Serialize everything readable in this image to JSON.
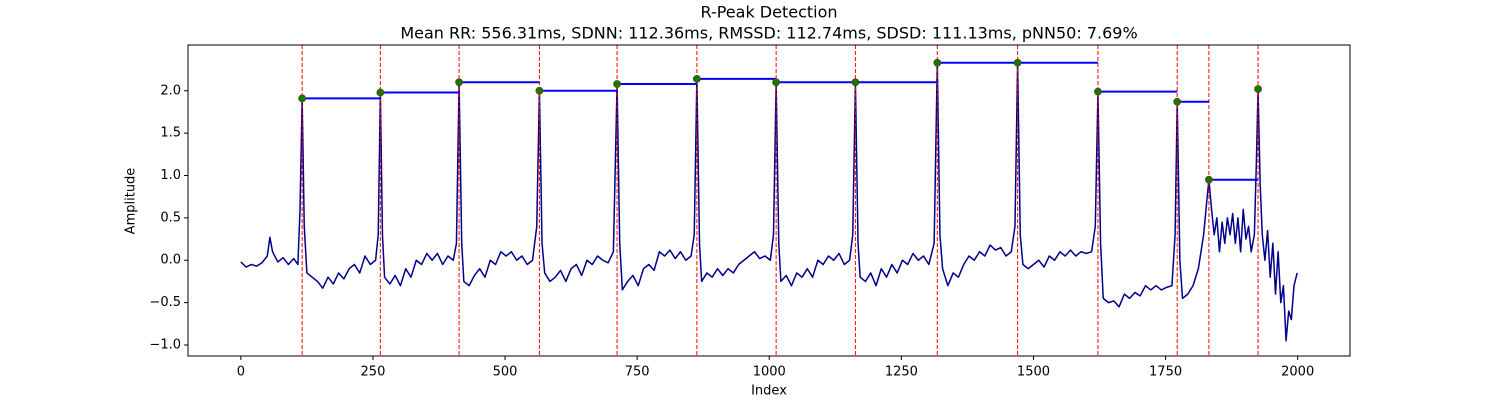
{
  "chart_data": {
    "type": "line",
    "title": "R-Peak Detection",
    "subtitle": "Mean RR: 556.31ms, SDNN: 112.36ms, RMSSD: 112.74ms, SDSD: 111.13ms, pNN50: 7.69%",
    "x_label": "Index",
    "y_label": "Amplitude",
    "xlim": [
      -100,
      2099
    ],
    "ylim": [
      -1.13,
      2.54
    ],
    "xticks": [
      0,
      250,
      500,
      750,
      1000,
      1250,
      1500,
      1750,
      2000
    ],
    "yticks": [
      {
        "value": -1,
        "label": "−1.0"
      },
      {
        "value": -0.5,
        "label": "−0.5"
      },
      {
        "value": 0,
        "label": "0.0"
      },
      0.5,
      {
        "value": 1,
        "label": "1.0"
      },
      1.5,
      {
        "value": 2,
        "label": "2.0"
      }
    ],
    "signal": {
      "color": "#00008b",
      "x": [
        0,
        10,
        20,
        30,
        40,
        50,
        55,
        60,
        70,
        80,
        90,
        100,
        108,
        112,
        116,
        120,
        125,
        135,
        145,
        155,
        165,
        175,
        185,
        195,
        205,
        215,
        225,
        235,
        245,
        255,
        260,
        264,
        268,
        272,
        282,
        292,
        302,
        312,
        322,
        332,
        342,
        352,
        362,
        372,
        382,
        392,
        402,
        408,
        413,
        418,
        422,
        432,
        442,
        452,
        462,
        472,
        482,
        492,
        502,
        512,
        522,
        532,
        542,
        552,
        560,
        565,
        570,
        575,
        585,
        595,
        605,
        615,
        625,
        635,
        645,
        655,
        665,
        675,
        685,
        695,
        705,
        712,
        717,
        722,
        732,
        742,
        752,
        762,
        772,
        782,
        792,
        802,
        812,
        822,
        832,
        842,
        852,
        858,
        863,
        868,
        872,
        882,
        892,
        902,
        912,
        922,
        932,
        942,
        952,
        962,
        972,
        982,
        992,
        1002,
        1008,
        1013,
        1018,
        1022,
        1032,
        1042,
        1052,
        1062,
        1072,
        1082,
        1092,
        1102,
        1112,
        1122,
        1132,
        1142,
        1152,
        1158,
        1163,
        1168,
        1172,
        1182,
        1192,
        1202,
        1212,
        1222,
        1232,
        1242,
        1252,
        1262,
        1272,
        1282,
        1292,
        1302,
        1312,
        1318,
        1323,
        1328,
        1338,
        1348,
        1358,
        1368,
        1378,
        1388,
        1398,
        1408,
        1418,
        1428,
        1438,
        1448,
        1458,
        1465,
        1470,
        1475,
        1480,
        1490,
        1500,
        1510,
        1520,
        1530,
        1540,
        1550,
        1560,
        1570,
        1580,
        1590,
        1600,
        1610,
        1617,
        1622,
        1627,
        1632,
        1642,
        1652,
        1662,
        1672,
        1682,
        1692,
        1702,
        1712,
        1722,
        1732,
        1742,
        1752,
        1762,
        1768,
        1772,
        1777,
        1782,
        1792,
        1802,
        1812,
        1822,
        1828,
        1832,
        1837,
        1842,
        1847,
        1852,
        1857,
        1862,
        1867,
        1872,
        1877,
        1882,
        1887,
        1892,
        1897,
        1902,
        1907,
        1912,
        1918,
        1922,
        1925,
        1929,
        1933,
        1938,
        1943,
        1948,
        1953,
        1958,
        1963,
        1968,
        1973,
        1978,
        1983,
        1988,
        1993,
        1999
      ],
      "values": [
        -0.02,
        -0.08,
        -0.05,
        -0.07,
        -0.03,
        0.05,
        0.27,
        0.1,
        -0.02,
        0.03,
        -0.05,
        0.02,
        -0.05,
        0.6,
        1.91,
        0.4,
        -0.15,
        -0.2,
        -0.25,
        -0.33,
        -0.2,
        -0.28,
        -0.15,
        -0.22,
        -0.1,
        -0.05,
        -0.15,
        0.05,
        -0.05,
        0.0,
        0.3,
        1.98,
        0.3,
        -0.2,
        -0.28,
        -0.18,
        -0.3,
        -0.1,
        -0.2,
        0.0,
        -0.05,
        0.08,
        0.0,
        0.08,
        -0.05,
        0.05,
        0.0,
        0.2,
        2.1,
        0.2,
        -0.25,
        -0.3,
        -0.18,
        -0.1,
        -0.2,
        0.0,
        -0.05,
        0.1,
        0.05,
        0.1,
        0.0,
        0.05,
        -0.05,
        0.0,
        0.4,
        2.0,
        0.2,
        -0.15,
        -0.25,
        -0.2,
        -0.12,
        -0.25,
        -0.1,
        -0.05,
        -0.18,
        0.0,
        -0.05,
        0.05,
        0.0,
        -0.03,
        0.1,
        2.08,
        0.2,
        -0.35,
        -0.25,
        -0.18,
        -0.3,
        -0.1,
        -0.05,
        -0.12,
        0.1,
        0.05,
        0.12,
        0.02,
        0.1,
        0.0,
        0.05,
        0.3,
        2.14,
        0.2,
        -0.25,
        -0.15,
        -0.2,
        -0.1,
        -0.18,
        -0.1,
        -0.15,
        -0.05,
        0.0,
        0.05,
        0.1,
        0.02,
        0.05,
        0.0,
        0.3,
        2.1,
        0.2,
        -0.25,
        -0.18,
        -0.3,
        -0.15,
        -0.2,
        -0.1,
        -0.2,
        0.0,
        -0.05,
        0.05,
        0.0,
        0.08,
        -0.05,
        0.0,
        0.3,
        2.1,
        0.2,
        -0.2,
        -0.25,
        -0.15,
        -0.3,
        -0.1,
        -0.2,
        -0.05,
        -0.15,
        0.0,
        -0.05,
        0.08,
        0.0,
        0.05,
        -0.05,
        0.2,
        2.33,
        0.3,
        -0.1,
        -0.3,
        -0.15,
        -0.2,
        -0.05,
        0.05,
        0.0,
        0.1,
        0.05,
        0.18,
        0.12,
        0.15,
        0.05,
        0.1,
        0.4,
        2.33,
        0.3,
        -0.05,
        -0.1,
        -0.05,
        0.0,
        -0.08,
        0.05,
        0.0,
        0.1,
        0.05,
        0.12,
        0.05,
        0.1,
        0.08,
        0.1,
        0.4,
        1.99,
        0.2,
        -0.45,
        -0.5,
        -0.48,
        -0.55,
        -0.4,
        -0.45,
        -0.38,
        -0.42,
        -0.3,
        -0.35,
        -0.3,
        -0.35,
        -0.32,
        -0.3,
        0.3,
        1.87,
        0.0,
        -0.45,
        -0.4,
        -0.3,
        -0.1,
        0.3,
        0.7,
        0.95,
        0.6,
        0.3,
        0.5,
        0.1,
        0.45,
        0.2,
        0.5,
        0.3,
        0.55,
        0.2,
        0.5,
        0.1,
        0.6,
        0.25,
        0.4,
        0.1,
        0.3,
        1.2,
        2.02,
        0.9,
        0.3,
        0.0,
        0.35,
        -0.2,
        0.2,
        -0.4,
        0.1,
        -0.5,
        -0.3,
        -0.95,
        -0.6,
        -0.7,
        -0.3,
        -0.15
      ]
    },
    "peaks": {
      "color": "green",
      "line_color": "red",
      "interval_color": "blue",
      "x": [
        116,
        264,
        413,
        565,
        712,
        863,
        1013,
        1163,
        1318,
        1470,
        1622,
        1772,
        1832,
        1925
      ],
      "values": [
        1.91,
        1.98,
        2.1,
        2.0,
        2.08,
        2.14,
        2.1,
        2.1,
        2.33,
        2.33,
        1.99,
        1.87,
        0.95,
        2.02
      ]
    }
  }
}
